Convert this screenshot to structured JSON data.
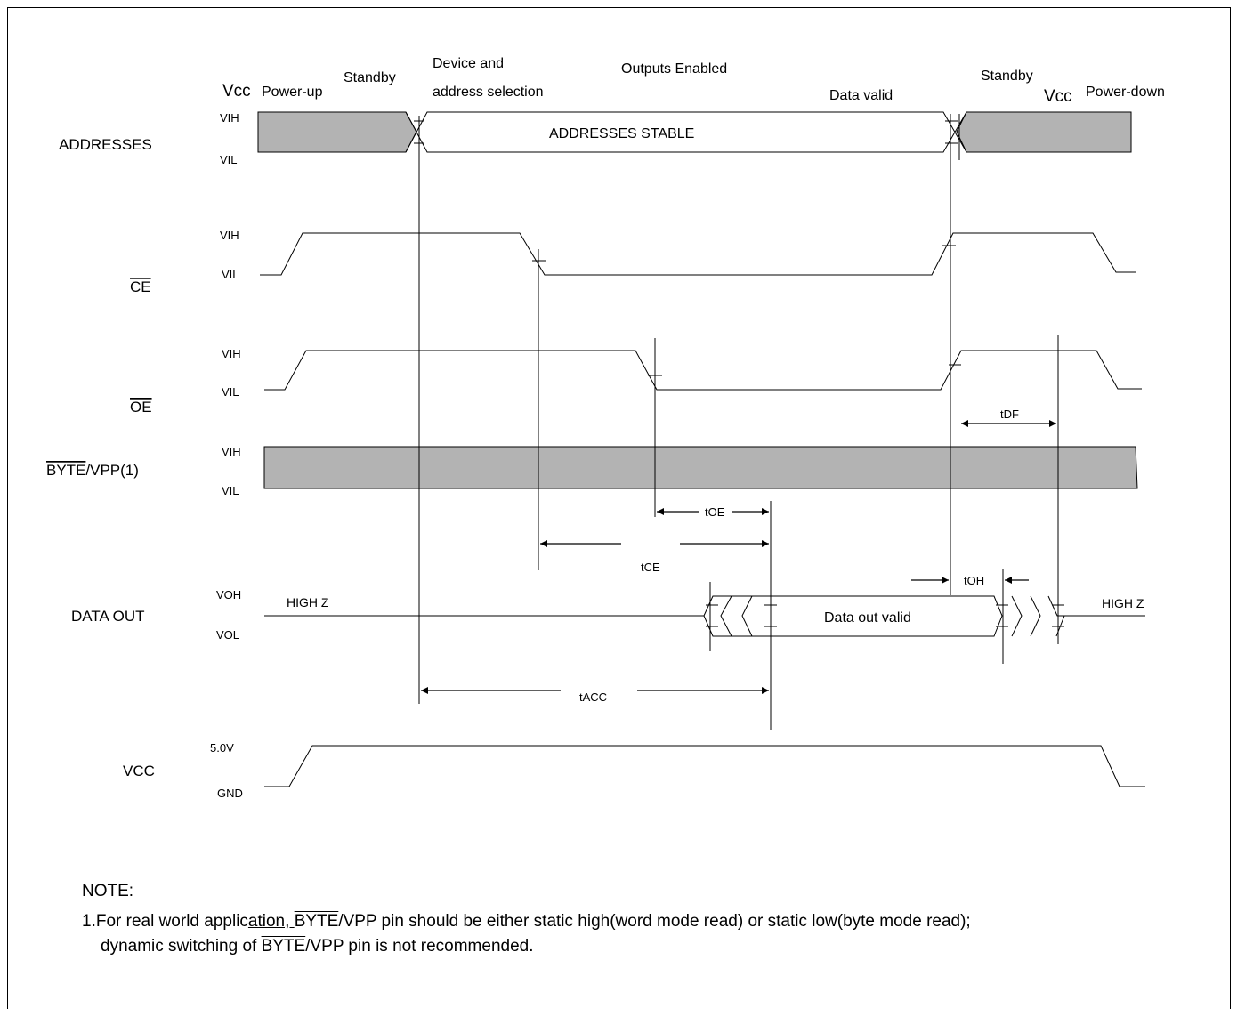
{
  "phases": {
    "vcc_left": "Vcc",
    "power_up": "Power-up",
    "standby_left": "Standby",
    "device_selection": [
      "Device and",
      "address selection"
    ],
    "outputs_enabled": "Outputs Enabled",
    "data_valid": "Data valid",
    "standby_right": "Standby",
    "vcc_right": "Vcc",
    "power_down": "Power-down"
  },
  "signals": {
    "addresses": "ADDRESSES",
    "ce": "CE",
    "oe": "OE",
    "byte_bar": "BYTE",
    "byte_rest": "/VPP(1)",
    "data_out": "DATA OUT",
    "vcc": "VCC"
  },
  "levels": {
    "vih": "VIH",
    "vil": "VIL",
    "voh": "VOH",
    "vol": "VOL",
    "v5": "5.0V",
    "gnd": "GND"
  },
  "waveform_text": {
    "addresses_stable": "ADDRESSES STABLE",
    "high_z_left": "HIGH Z",
    "data_out_valid": "Data out valid",
    "high_z_right": "HIGH Z"
  },
  "timing": {
    "toe": "tOE",
    "tce": "tCE",
    "tacc": "tACC",
    "toh": "tOH",
    "tdf": "tDF"
  },
  "note": {
    "heading": "NOTE:",
    "line1_prefix": "1.For  real world applic",
    "line1_underlined": "ation, ",
    "line1_bar": "BYTE",
    "line1_suffix": "/VPP pin should be either static high(word mode read) or static low(byte mode read);",
    "line2_prefix": "dynamic switching of ",
    "line2_bar": "BYTE",
    "line2_suffix": "/VPP pin is not recommended."
  },
  "colors": {
    "shade": "#b3b3b3",
    "line": "#000000"
  }
}
